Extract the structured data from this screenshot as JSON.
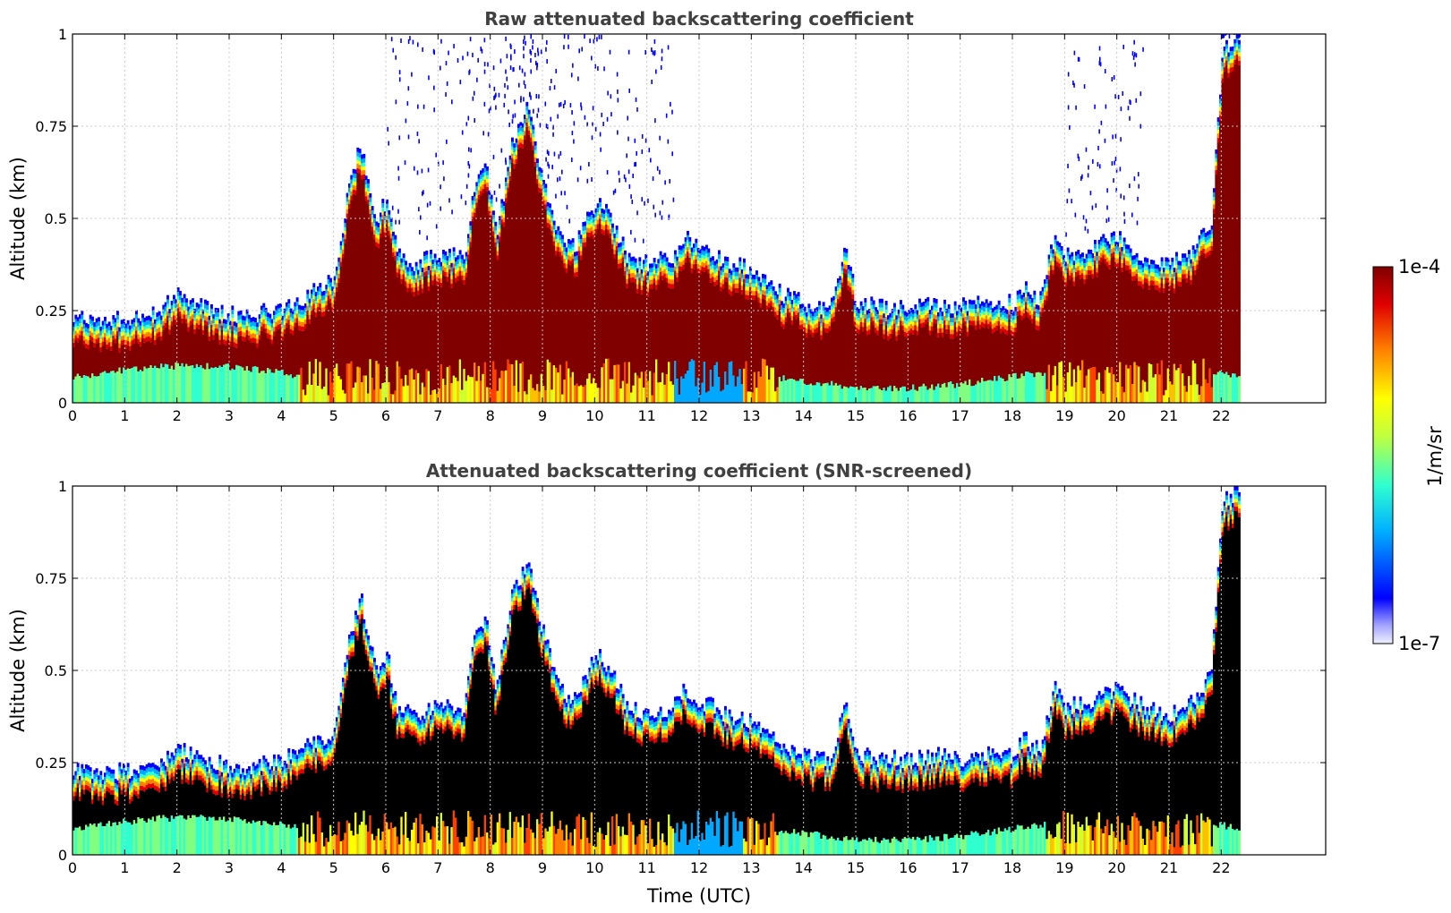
{
  "chart_data": [
    {
      "type": "heatmap",
      "title": "Raw attenuated backscattering coefficient",
      "xlabel": "",
      "ylabel": "Altitude (km)",
      "xlim": [
        0,
        24
      ],
      "ylim": [
        0,
        1
      ],
      "xticks": [
        0,
        1,
        2,
        3,
        4,
        5,
        6,
        7,
        8,
        9,
        10,
        11,
        12,
        13,
        14,
        15,
        16,
        17,
        18,
        19,
        20,
        21,
        22
      ],
      "xtick_labels": [
        "0",
        "1",
        "2",
        "3",
        "4",
        "5",
        "6",
        "7",
        "8",
        "9",
        "10",
        "11",
        "12",
        "13",
        "14",
        "15",
        "16",
        "17",
        "18",
        "19",
        "20",
        "21",
        "22"
      ],
      "yticks": [
        0,
        0.25,
        0.5,
        0.75,
        1
      ],
      "ytick_labels": [
        "0",
        "0.25",
        "0.5",
        "0.75",
        "1"
      ],
      "grid": true,
      "data_extent_hours": [
        0,
        22.35
      ],
      "layer_top_km": [
        [
          0,
          0.23
        ],
        [
          0.5,
          0.22
        ],
        [
          1,
          0.23
        ],
        [
          1.5,
          0.24
        ],
        [
          2,
          0.29
        ],
        [
          2.5,
          0.26
        ],
        [
          3,
          0.24
        ],
        [
          3.5,
          0.24
        ],
        [
          4,
          0.26
        ],
        [
          4.3,
          0.28
        ],
        [
          4.6,
          0.3
        ],
        [
          5,
          0.34
        ],
        [
          5.3,
          0.6
        ],
        [
          5.5,
          0.7
        ],
        [
          5.8,
          0.5
        ],
        [
          6,
          0.55
        ],
        [
          6.2,
          0.4
        ],
        [
          6.5,
          0.38
        ],
        [
          7,
          0.4
        ],
        [
          7.5,
          0.4
        ],
        [
          7.7,
          0.6
        ],
        [
          7.9,
          0.65
        ],
        [
          8.1,
          0.45
        ],
        [
          8.4,
          0.7
        ],
        [
          8.7,
          0.8
        ],
        [
          9,
          0.6
        ],
        [
          9.3,
          0.45
        ],
        [
          9.6,
          0.42
        ],
        [
          10,
          0.55
        ],
        [
          10.3,
          0.5
        ],
        [
          10.6,
          0.4
        ],
        [
          11,
          0.38
        ],
        [
          11.5,
          0.4
        ],
        [
          11.7,
          0.45
        ],
        [
          12,
          0.42
        ],
        [
          12.5,
          0.38
        ],
        [
          13,
          0.36
        ],
        [
          13.5,
          0.3
        ],
        [
          14,
          0.27
        ],
        [
          14.5,
          0.25
        ],
        [
          14.8,
          0.42
        ],
        [
          15,
          0.27
        ],
        [
          15.5,
          0.26
        ],
        [
          16,
          0.26
        ],
        [
          16.5,
          0.27
        ],
        [
          17,
          0.26
        ],
        [
          17.5,
          0.28
        ],
        [
          18,
          0.27
        ],
        [
          18.2,
          0.32
        ],
        [
          18.5,
          0.28
        ],
        [
          18.8,
          0.45
        ],
        [
          19,
          0.4
        ],
        [
          19.5,
          0.42
        ],
        [
          20,
          0.45
        ],
        [
          20.5,
          0.4
        ],
        [
          21,
          0.38
        ],
        [
          21.5,
          0.42
        ],
        [
          21.8,
          0.5
        ],
        [
          22,
          0.95
        ],
        [
          22.35,
          1.0
        ]
      ],
      "sparse_noise_hours": [
        [
          6,
          11.5
        ],
        [
          19,
          20.5
        ],
        [
          22,
          22.35
        ]
      ],
      "colorbar": {
        "label": "1/m/sr",
        "min_label": "1e-7",
        "max_label": "1e-4",
        "scale": "log"
      }
    },
    {
      "type": "heatmap",
      "title": "Attenuated backscattering coefficient (SNR-screened)",
      "xlabel": "Time (UTC)",
      "ylabel": "Altitude (km)",
      "xlim": [
        0,
        24
      ],
      "ylim": [
        0,
        1
      ],
      "xticks": [
        0,
        1,
        2,
        3,
        4,
        5,
        6,
        7,
        8,
        9,
        10,
        11,
        12,
        13,
        14,
        15,
        16,
        17,
        18,
        19,
        20,
        21,
        22
      ],
      "xtick_labels": [
        "0",
        "1",
        "2",
        "3",
        "4",
        "5",
        "6",
        "7",
        "8",
        "9",
        "10",
        "11",
        "12",
        "13",
        "14",
        "15",
        "16",
        "17",
        "18",
        "19",
        "20",
        "21",
        "22"
      ],
      "yticks": [
        0,
        0.25,
        0.5,
        0.75,
        1
      ],
      "ytick_labels": [
        "0",
        "0.25",
        "0.5",
        "0.75",
        "1"
      ],
      "grid": true,
      "data_extent_hours": [
        0,
        22.35
      ],
      "saturated_color": "#000000"
    }
  ],
  "colorbar": {
    "label": "1/m/sr",
    "max_label": "1e-4",
    "min_label": "1e-7"
  },
  "colors": {
    "jet": [
      "#e8e8ff",
      "#c8c8ff",
      "#9898ff",
      "#0000ff",
      "#0060ff",
      "#00a8ff",
      "#00e0ff",
      "#30ffd0",
      "#80ff80",
      "#d0ff30",
      "#ffff00",
      "#ffc000",
      "#ff8000",
      "#ff4000",
      "#e00000",
      "#b00000",
      "#800000"
    ],
    "text": "#404040",
    "grid": "#c8c8c8"
  }
}
